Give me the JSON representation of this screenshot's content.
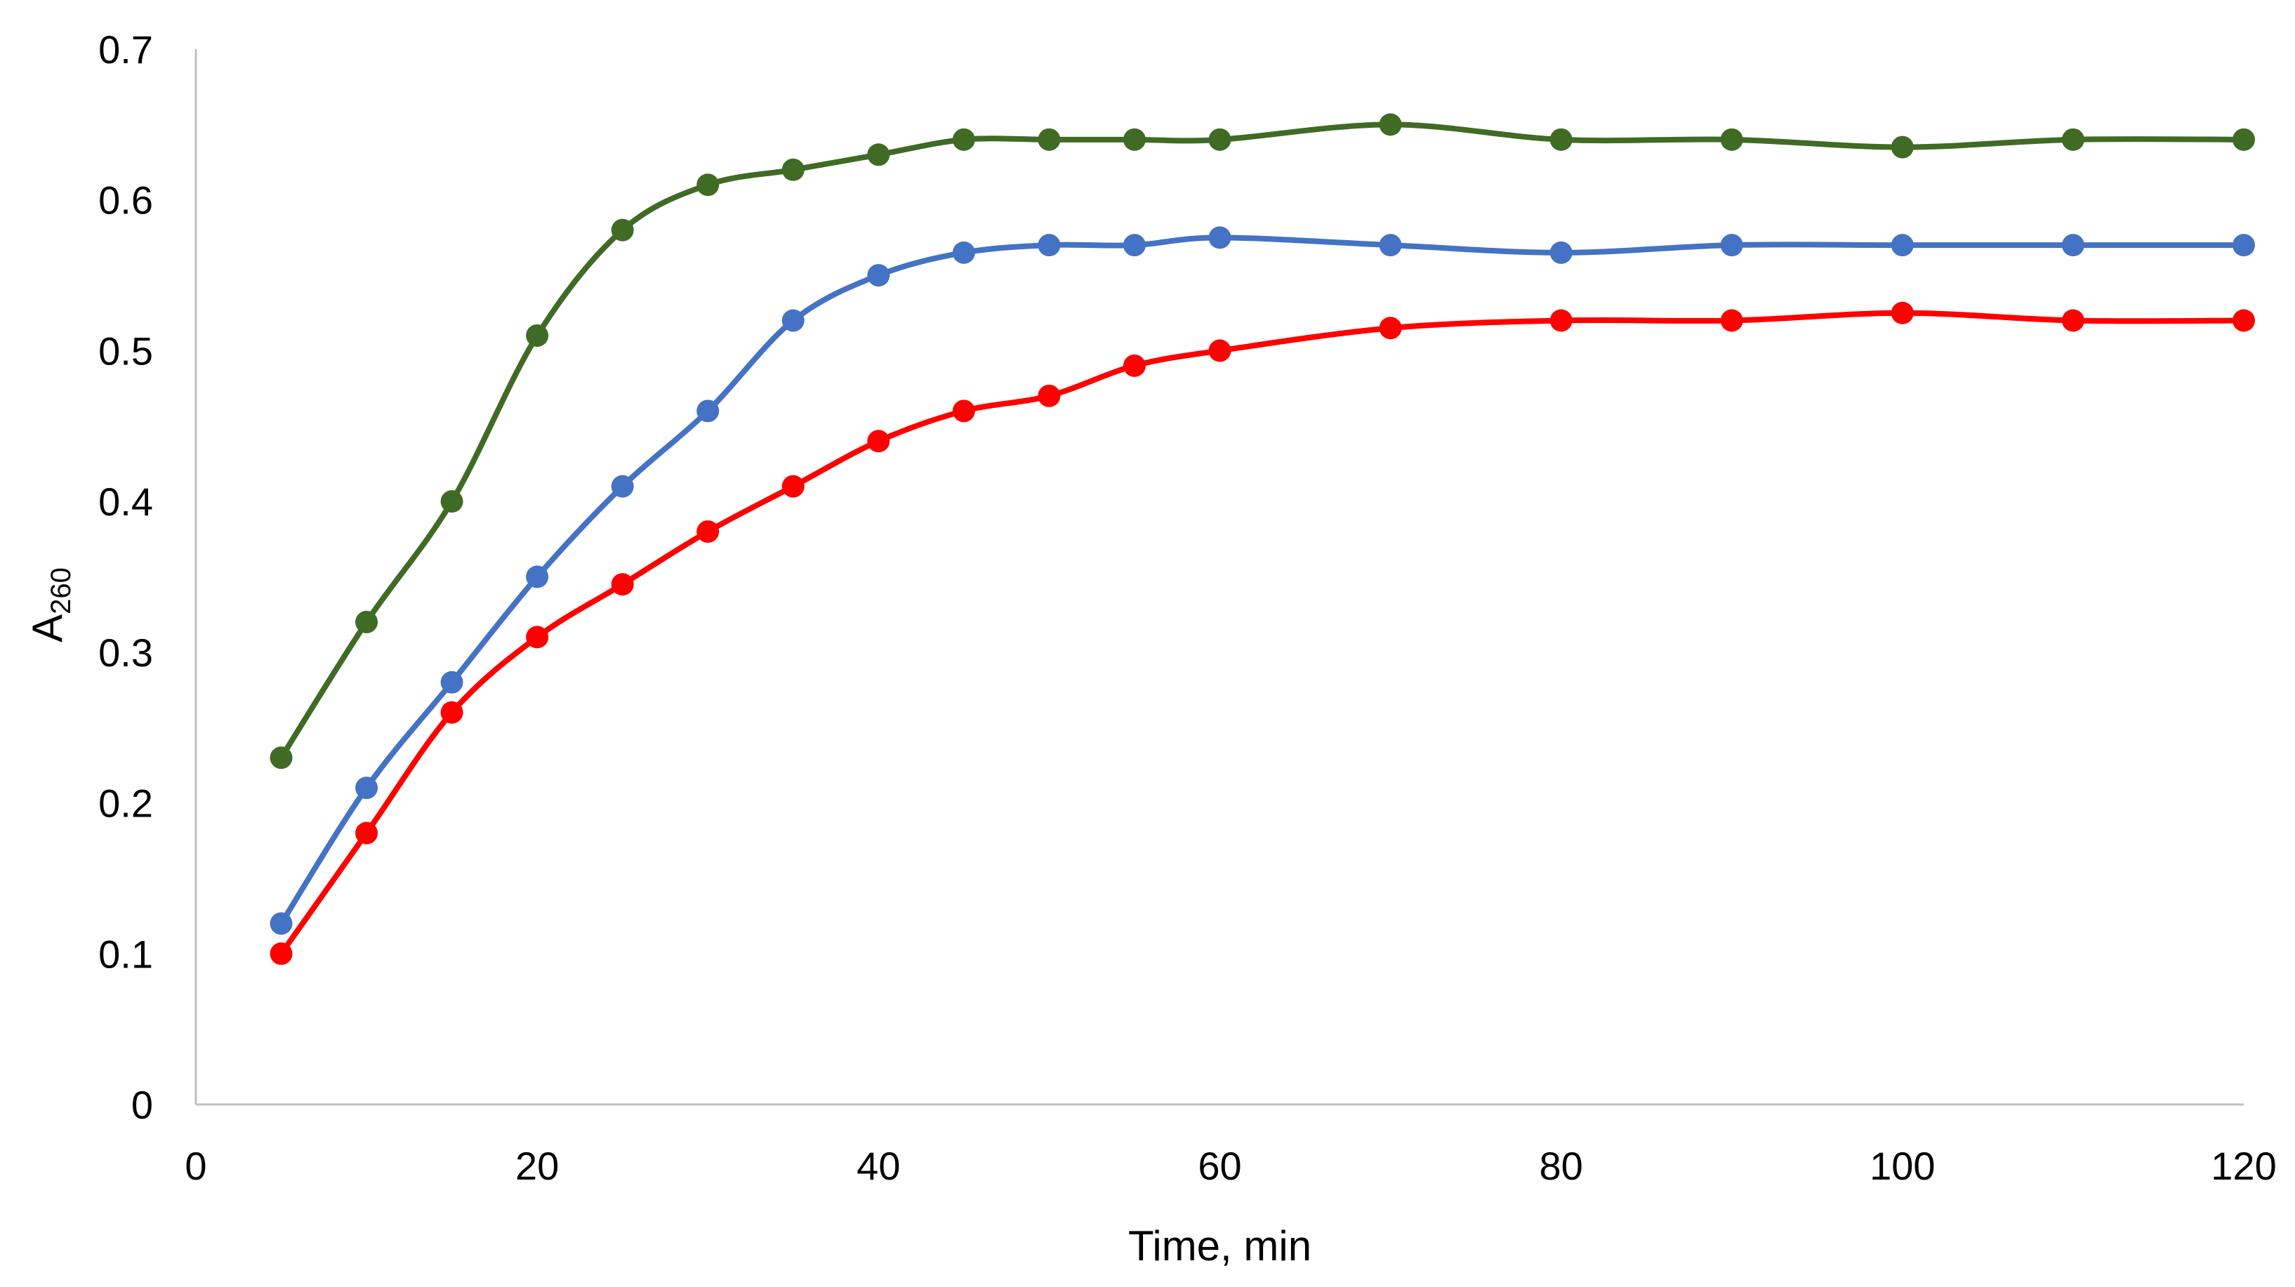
{
  "chart_data": {
    "type": "line",
    "title": "",
    "xlabel": "Time, min",
    "ylabel_main": "A",
    "ylabel_sub": "260",
    "xlim": [
      0,
      120
    ],
    "ylim": [
      0,
      0.7
    ],
    "xticks": [
      0,
      20,
      40,
      60,
      80,
      100,
      120
    ],
    "yticks": [
      0,
      0.1,
      0.2,
      0.3,
      0.4,
      0.5,
      0.6,
      0.7
    ],
    "xtick_labels": [
      "0",
      "20",
      "40",
      "60",
      "80",
      "100",
      "120"
    ],
    "ytick_labels": [
      "0",
      "0.1",
      "0.2",
      "0.3",
      "0.4",
      "0.5",
      "0.6",
      "0.7"
    ],
    "grid": false,
    "smooth": true,
    "series": [
      {
        "name": "green",
        "color": "#3f6b24",
        "x": [
          5,
          10,
          15,
          20,
          25,
          30,
          35,
          40,
          45,
          50,
          55,
          60,
          70,
          80,
          90,
          100,
          110,
          120
        ],
        "y": [
          0.23,
          0.32,
          0.4,
          0.51,
          0.58,
          0.61,
          0.62,
          0.63,
          0.64,
          0.64,
          0.64,
          0.64,
          0.65,
          0.64,
          0.64,
          0.635,
          0.64,
          0.64
        ]
      },
      {
        "name": "blue",
        "color": "#4472c4",
        "x": [
          5,
          10,
          15,
          20,
          25,
          30,
          35,
          40,
          45,
          50,
          55,
          60,
          70,
          80,
          90,
          100,
          110,
          120
        ],
        "y": [
          0.12,
          0.21,
          0.28,
          0.35,
          0.41,
          0.46,
          0.52,
          0.55,
          0.565,
          0.57,
          0.57,
          0.575,
          0.57,
          0.565,
          0.57,
          0.57,
          0.57,
          0.57
        ]
      },
      {
        "name": "red",
        "color": "#ff0000",
        "x": [
          5,
          10,
          15,
          20,
          25,
          30,
          35,
          40,
          45,
          50,
          55,
          60,
          70,
          80,
          90,
          100,
          110,
          120
        ],
        "y": [
          0.1,
          0.18,
          0.26,
          0.31,
          0.345,
          0.38,
          0.41,
          0.44,
          0.46,
          0.47,
          0.49,
          0.5,
          0.515,
          0.52,
          0.52,
          0.525,
          0.52,
          0.52
        ]
      }
    ]
  }
}
